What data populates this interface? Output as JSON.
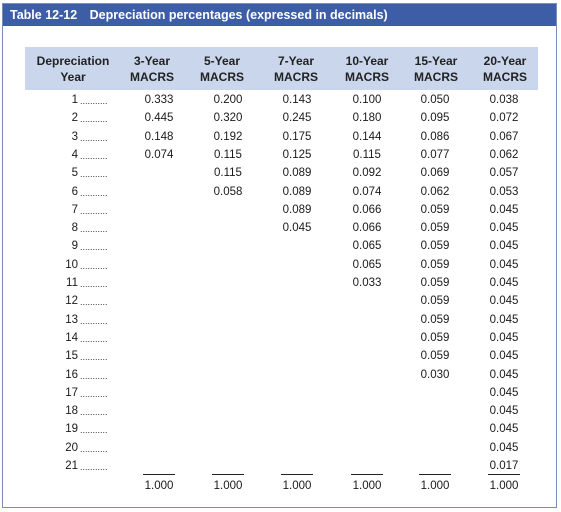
{
  "table": {
    "number": "Table 12-12",
    "title": "Depreciation percentages (expressed in decimals)",
    "header": {
      "year": [
        "Depreciation",
        "Year"
      ],
      "columns": [
        [
          "3-Year",
          "MACRS"
        ],
        [
          "5-Year",
          "MACRS"
        ],
        [
          "7-Year",
          "MACRS"
        ],
        [
          "10-Year",
          "MACRS"
        ],
        [
          "15-Year",
          "MACRS"
        ],
        [
          "20-Year",
          "MACRS"
        ]
      ]
    },
    "leader": "...........",
    "years": [
      "1",
      "2",
      "3",
      "4",
      "5",
      "6",
      "7",
      "8",
      "9",
      "10",
      "11",
      "12",
      "13",
      "14",
      "15",
      "16",
      "17",
      "18",
      "19",
      "20",
      "21"
    ],
    "columns": [
      [
        "0.333",
        "0.445",
        "0.148",
        "0.074"
      ],
      [
        "0.200",
        "0.320",
        "0.192",
        "0.115",
        "0.115",
        "0.058"
      ],
      [
        "0.143",
        "0.245",
        "0.175",
        "0.125",
        "0.089",
        "0.089",
        "0.089",
        "0.045"
      ],
      [
        "0.100",
        "0.180",
        "0.144",
        "0.115",
        "0.092",
        "0.074",
        "0.066",
        "0.066",
        "0.065",
        "0.065",
        "0.033"
      ],
      [
        "0.050",
        "0.095",
        "0.086",
        "0.077",
        "0.069",
        "0.062",
        "0.059",
        "0.059",
        "0.059",
        "0.059",
        "0.059",
        "0.059",
        "0.059",
        "0.059",
        "0.059",
        "0.030"
      ],
      [
        "0.038",
        "0.072",
        "0.067",
        "0.062",
        "0.057",
        "0.053",
        "0.045",
        "0.045",
        "0.045",
        "0.045",
        "0.045",
        "0.045",
        "0.045",
        "0.045",
        "0.045",
        "0.045",
        "0.045",
        "0.045",
        "0.045",
        "0.045",
        "0.017"
      ]
    ],
    "totals": [
      "1.000",
      "1.000",
      "1.000",
      "1.000",
      "1.000",
      "1.000"
    ]
  }
}
